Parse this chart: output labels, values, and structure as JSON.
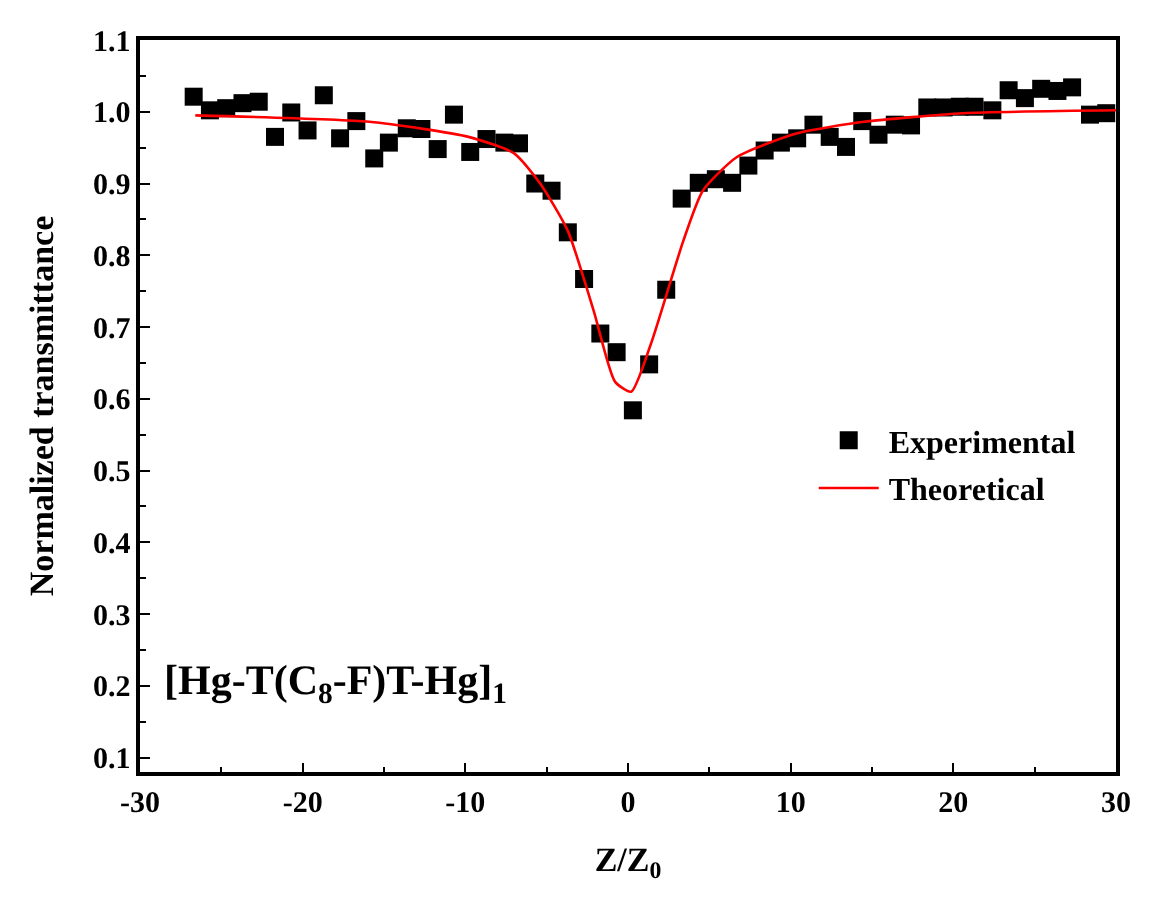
{
  "chart_data": {
    "type": "scatter",
    "xlabel": "Z/Z$_{0}$",
    "ylabel": "Normalized transmittance",
    "annotations": [
      "[Hg-T(C$_{8}$-F)T-Hg]$_{1}$"
    ],
    "xlim": [
      -30,
      30
    ],
    "xticks": [
      -30,
      -20,
      -10,
      0,
      10,
      20,
      30
    ],
    "ylim": [
      0.08,
      1.1
    ],
    "yticks": [
      0.1,
      0.2,
      0.3,
      0.4,
      0.5,
      0.6,
      0.7,
      0.8,
      0.9,
      {
        "value": 1.0,
        "label": "1.0"
      },
      1.1
    ],
    "grid": false,
    "legend": "right",
    "series": [
      {
        "name": "Experimental",
        "marker": "square",
        "color": "#000000",
        "x": [
          -26.7,
          -25.7,
          -24.7,
          -23.7,
          -22.7,
          -21.7,
          -20.7,
          -19.7,
          -18.7,
          -17.7,
          -16.7,
          -15.6,
          -14.7,
          -13.6,
          -12.7,
          -11.7,
          -10.7,
          -9.7,
          -8.7,
          -7.6,
          -6.7,
          -5.7,
          -4.7,
          -3.7,
          -2.7,
          -1.7,
          -0.7,
          0.3,
          1.3,
          2.35,
          3.3,
          4.35,
          5.4,
          6.4,
          7.4,
          8.4,
          9.4,
          10.4,
          11.4,
          12.4,
          13.4,
          14.4,
          15.4,
          16.4,
          17.4,
          18.4,
          19.4,
          20.4,
          21.3,
          22.4,
          23.4,
          24.4,
          25.4,
          26.4,
          27.3,
          28.4,
          29.4
        ],
        "values": [
          1.021,
          1.002,
          1.005,
          1.012,
          1.014,
          0.965,
          0.999,
          0.974,
          1.023,
          0.963,
          0.987,
          0.935,
          0.957,
          0.977,
          0.976,
          0.948,
          0.996,
          0.944,
          0.962,
          0.957,
          0.956,
          0.9,
          0.89,
          0.832,
          0.767,
          0.691,
          0.665,
          0.584,
          0.648,
          0.752,
          0.879,
          0.901,
          0.906,
          0.901,
          0.925,
          0.946,
          0.957,
          0.963,
          0.982,
          0.965,
          0.951,
          0.987,
          0.968,
          0.982,
          0.981,
          1.006,
          1.006,
          1.007,
          1.007,
          1.002,
          1.03,
          1.019,
          1.032,
          1.029,
          1.034,
          0.996,
          0.998
        ]
      },
      {
        "name": "Theoretical",
        "type": "line",
        "marker": "none",
        "line_style": "solid",
        "color": "#ff0000",
        "x": [
          -26.6,
          -15.9,
          -9.8,
          -7.0,
          -5.4,
          -3.7,
          -2.1,
          -0.8,
          0.2,
          1.4,
          3.4,
          4.6,
          6.7,
          10.4,
          14.5,
          20.6,
          30
        ],
        "values": [
          0.995,
          0.986,
          0.965,
          0.942,
          0.9,
          0.834,
          0.722,
          0.624,
          0.61,
          0.676,
          0.82,
          0.89,
          0.937,
          0.97,
          0.986,
          0.998,
          1.002
        ]
      }
    ]
  }
}
